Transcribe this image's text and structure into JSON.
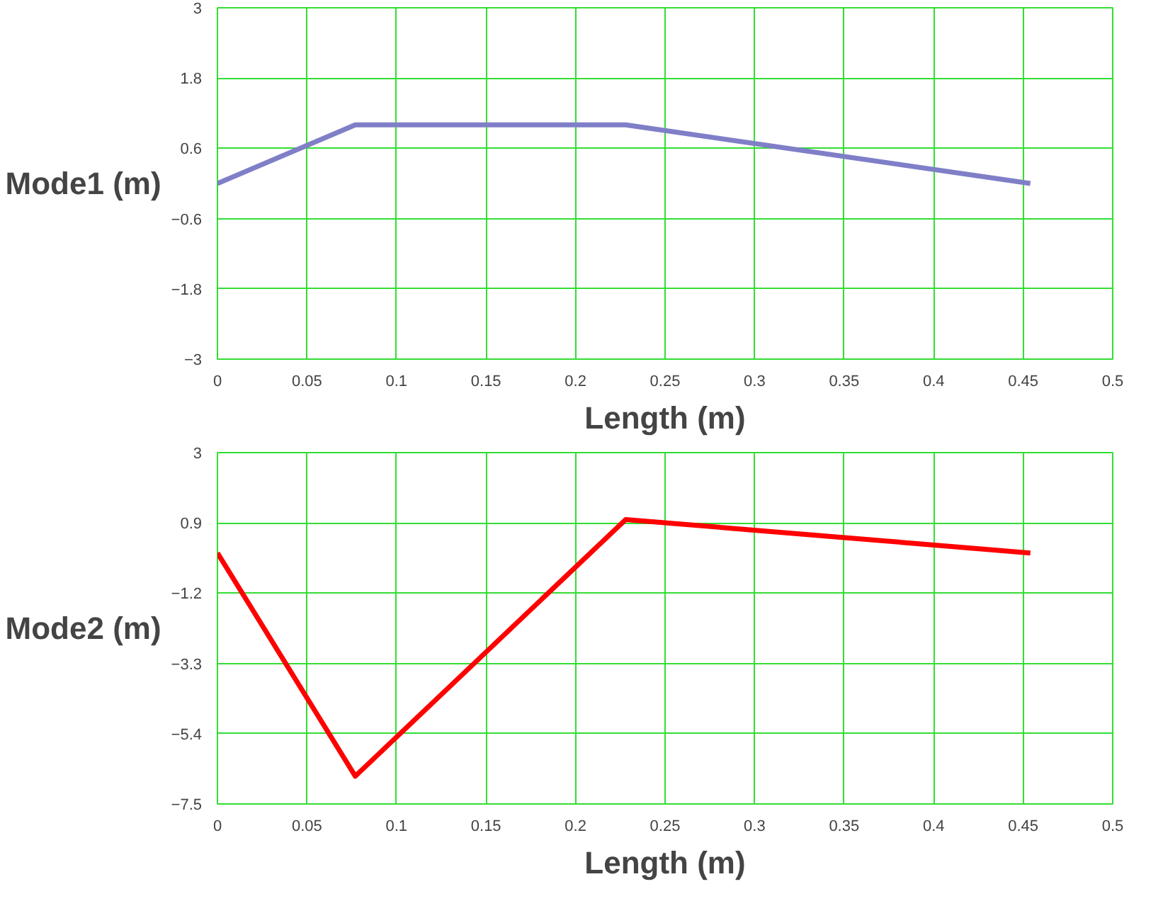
{
  "chart_data": [
    {
      "type": "line",
      "xlabel": "Length (m)",
      "ylabel": "Mode1 (m)",
      "x": [
        0,
        0.077,
        0.228,
        0.454
      ],
      "series": [
        {
          "color": "#7f7fc8",
          "values": [
            0,
            1.0,
            1.0,
            0
          ]
        }
      ],
      "xlim": [
        0,
        0.5
      ],
      "ylim": [
        -3,
        3
      ],
      "xticks": [
        0,
        0.05,
        0.1,
        0.15,
        0.2,
        0.25,
        0.3,
        0.35,
        0.4,
        0.45,
        0.5
      ],
      "yticks": [
        -3,
        -1.8,
        -0.6,
        0.6,
        1.8,
        3
      ],
      "grid": true,
      "marker": "none",
      "line_style": "solid"
    },
    {
      "type": "line",
      "xlabel": "Length (m)",
      "ylabel": "Mode2 (m)",
      "x": [
        0,
        0.077,
        0.228,
        0.454
      ],
      "series": [
        {
          "color": "#ff0000",
          "values": [
            0,
            -6.67,
            1.0,
            0
          ]
        }
      ],
      "xlim": [
        0,
        0.5
      ],
      "ylim": [
        -7.5,
        3
      ],
      "xticks": [
        0,
        0.05,
        0.1,
        0.15,
        0.2,
        0.25,
        0.3,
        0.35,
        0.4,
        0.45,
        0.5
      ],
      "yticks": [
        -7.5,
        -5.4,
        -3.3,
        -1.2,
        0.9,
        3
      ],
      "grid": true,
      "marker": "none",
      "line_style": "solid"
    }
  ]
}
